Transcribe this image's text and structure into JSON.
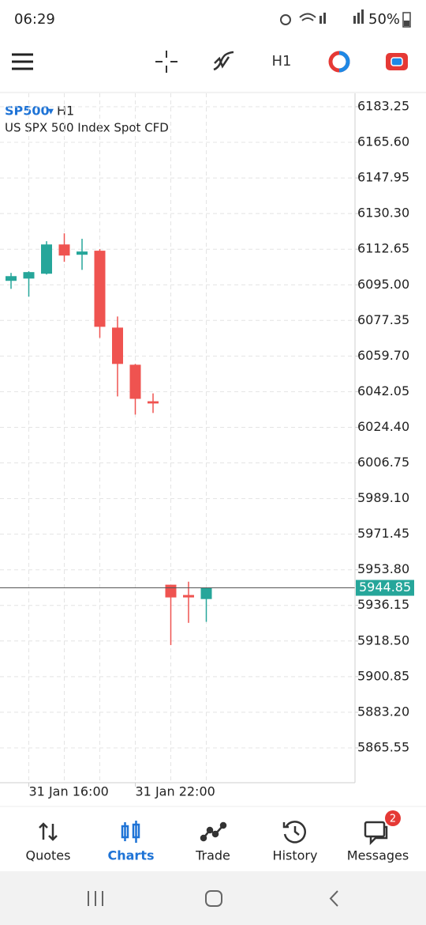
{
  "status_bar": {
    "time": "06:29",
    "battery": "50%"
  },
  "toolbar": {
    "timeframe": "H1"
  },
  "chart_data": {
    "type": "candlestick",
    "symbol": "SP500",
    "timeframe": "H1",
    "description": "US SPX 500 Index Spot CFD",
    "categories": [
      null,
      "31 Jan 16:00",
      null,
      null,
      null,
      null,
      null,
      "31 Jan 22:00",
      null,
      null,
      null,
      null
    ],
    "open": [
      6096.97,
      6098.1,
      6100.5,
      6115.0,
      6109.9,
      6111.9,
      6073.8,
      6055.4,
      6037.3,
      5946.4,
      5941.3,
      5939.3
    ],
    "high": [
      6100.9,
      6101.7,
      6116.6,
      6120.5,
      6117.8,
      6112.7,
      6079.3,
      6055.8,
      6041.2,
      5946.4,
      5947.9,
      5944.85
    ],
    "low": [
      6093.0,
      6089.1,
      6100.1,
      6106.4,
      6102.4,
      6068.7,
      6039.7,
      6030.7,
      6031.5,
      5916.5,
      5927.5,
      5928.0
    ],
    "close": [
      6099.3,
      6101.3,
      6115.0,
      6109.5,
      6111.5,
      6074.2,
      6055.8,
      6038.5,
      6036.2,
      5940.1,
      5940.1,
      5944.85
    ],
    "up_color": "#26a69a",
    "down_color": "#ef5350",
    "current_price": 5944.85,
    "ylim": [
      5848.3,
      6189.9
    ],
    "yticks": [
      6183.25,
      {
        "value": 6165.6,
        "label": "6165.60"
      },
      6147.95,
      {
        "value": 6130.3,
        "label": "6130.30"
      },
      6112.65,
      {
        "value": 6095,
        "label": "6095.00"
      },
      6077.35,
      {
        "value": 6059.7,
        "label": "6059.70"
      },
      6042.05,
      {
        "value": 6024.4,
        "label": "6024.40"
      },
      6006.75,
      {
        "value": 5989.1,
        "label": "5989.10"
      },
      5971.45,
      {
        "value": 5953.8,
        "label": "5953.80"
      },
      5936.15,
      {
        "value": 5918.5,
        "label": "5918.50"
      },
      5900.85,
      {
        "value": 5883.2,
        "label": "5883.20"
      },
      5865.55
    ],
    "grid": true
  },
  "tabs": [
    "Quotes",
    "Charts",
    "Trade",
    "History",
    "Messages"
  ],
  "messages_badge": 2
}
